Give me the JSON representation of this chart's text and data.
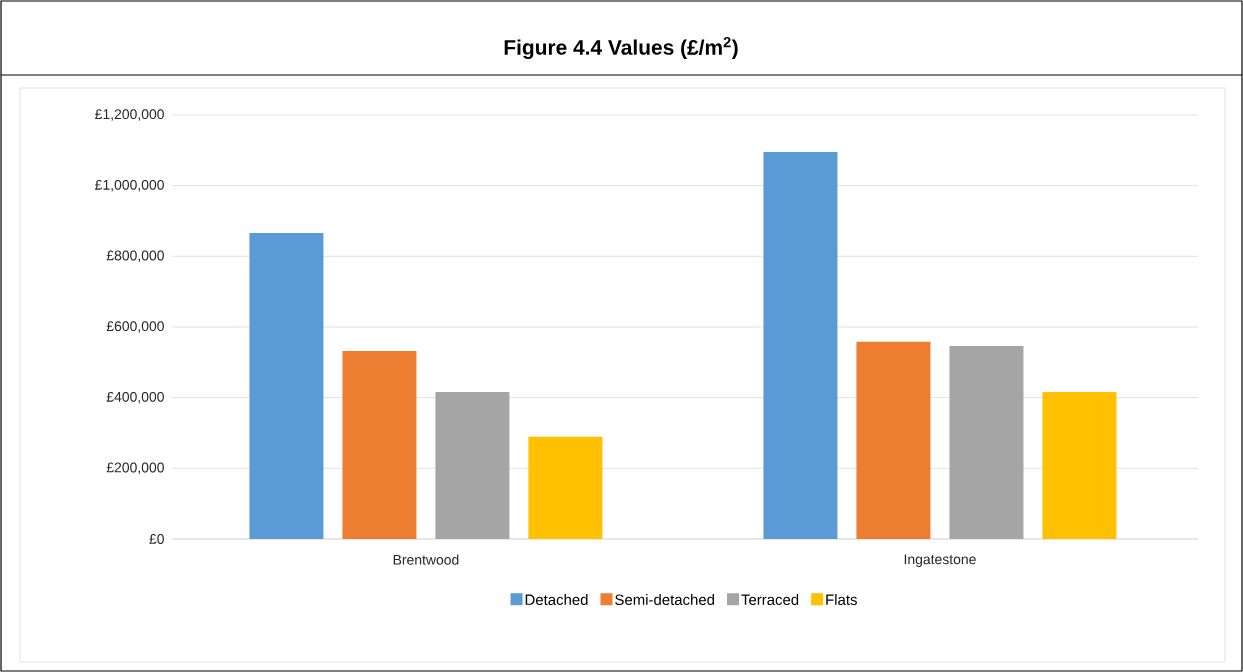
{
  "chart_data": {
    "type": "bar",
    "title": "Figure 4.4  Values (£/m$^{2}$)",
    "categories": [
      "Brentwood",
      "Ingatestone"
    ],
    "series": [
      {
        "name": "Detached",
        "color": "#5b9bd5",
        "values": [
          866000,
          1095000
        ]
      },
      {
        "name": "Semi-detached",
        "color": "#ed7d31",
        "values": [
          532000,
          558000
        ]
      },
      {
        "name": "Terraced",
        "color": "#a5a5a5",
        "values": [
          416000,
          546000
        ]
      },
      {
        "name": "Flats",
        "color": "#ffc000",
        "values": [
          289000,
          416000
        ]
      }
    ],
    "ylim": [
      0,
      1200000
    ],
    "yticks": [
      {
        "value": 0,
        "label": "£0"
      },
      {
        "value": 200000,
        "label": "£200,000"
      },
      {
        "value": 400000,
        "label": "£400,000"
      },
      {
        "value": 600000,
        "label": "£600,000"
      },
      {
        "value": 800000,
        "label": "£800,000"
      },
      {
        "value": 1000000,
        "label": "£1,000,000"
      },
      {
        "value": 1200000,
        "label": "£1,200,000"
      }
    ],
    "grid": "y",
    "legend": "bottom"
  }
}
